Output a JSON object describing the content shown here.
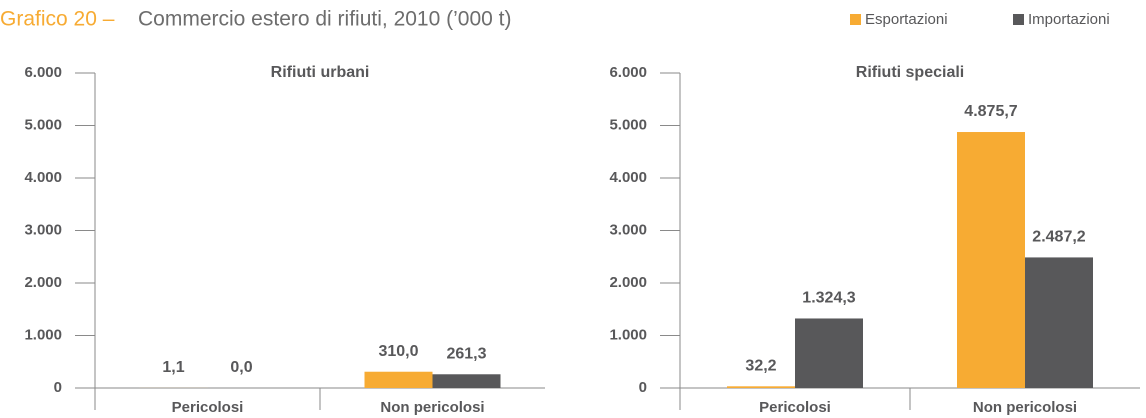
{
  "title_label": "Grafico 20 –",
  "title": "Commercio estero di rifiuti, 2010 (’000 t)",
  "chart_data": [
    {
      "type": "bar",
      "title": "Rifiuti urbani",
      "categories": [
        "Pericolosi",
        "Non pericolosi"
      ],
      "series": [
        {
          "name": "Esportazioni",
          "color": "#f7ab33",
          "values": [
            1.1,
            310.0
          ],
          "value_labels": [
            "1,1",
            "310,0"
          ]
        },
        {
          "name": "Importazioni",
          "color": "#58585a",
          "values": [
            0.0,
            261.3
          ],
          "value_labels": [
            "0,0",
            "261,3"
          ]
        }
      ],
      "ylim": [
        0,
        6000
      ],
      "yticks": [
        {
          "value": 0,
          "label": "0"
        },
        {
          "value": 1000,
          "label": "1.000"
        },
        {
          "value": 2000,
          "label": "2.000"
        },
        {
          "value": 3000,
          "label": "3.000"
        },
        {
          "value": 4000,
          "label": "4.000"
        },
        {
          "value": 5000,
          "label": "5.000"
        },
        {
          "value": 6000,
          "label": "6.000"
        }
      ]
    },
    {
      "type": "bar",
      "title": "Rifiuti speciali",
      "categories": [
        "Pericolosi",
        "Non pericolosi"
      ],
      "series": [
        {
          "name": "Esportazioni",
          "color": "#f7ab33",
          "values": [
            32.2,
            4875.7
          ],
          "value_labels": [
            "32,2",
            "4.875,7"
          ]
        },
        {
          "name": "Importazioni",
          "color": "#58585a",
          "values": [
            1324.3,
            2487.2
          ],
          "value_labels": [
            "1.324,3",
            "2.487,2"
          ]
        }
      ],
      "ylim": [
        0,
        6000
      ],
      "yticks": [
        {
          "value": 0,
          "label": "0"
        },
        {
          "value": 1000,
          "label": "1.000"
        },
        {
          "value": 2000,
          "label": "2.000"
        },
        {
          "value": 3000,
          "label": "3.000"
        },
        {
          "value": 4000,
          "label": "4.000"
        },
        {
          "value": 5000,
          "label": "5.000"
        },
        {
          "value": 6000,
          "label": "6.000"
        }
      ]
    }
  ]
}
